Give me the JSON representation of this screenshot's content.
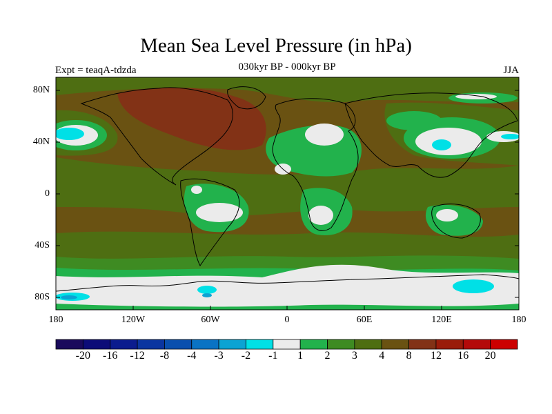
{
  "title": "Mean Sea Level Pressure (in hPa)",
  "experiment_label": "Expt = teaqA-tdzda",
  "period_label": "030kyr BP - 000kyr BP",
  "season_label": "JJA",
  "lon_ticks": [
    "180",
    "120W",
    "60W",
    "0",
    "60E",
    "120E",
    "180"
  ],
  "lat_ticks": [
    "80N",
    "40N",
    "0",
    "40S",
    "80S"
  ],
  "colorbar": {
    "labels": [
      "-20",
      "-16",
      "-12",
      "-8",
      "-4",
      "-3",
      "-2",
      "-1",
      "1",
      "2",
      "3",
      "4",
      "8",
      "12",
      "16",
      "20"
    ],
    "colors": [
      "#1a0a5c",
      "#0c0c78",
      "#0b1c8e",
      "#0b35a0",
      "#0a4fae",
      "#0a73c4",
      "#0ca3d3",
      "#00e0e6",
      "#ebebeb",
      "#22b24c",
      "#3e8b22",
      "#4e6e12",
      "#6a5212",
      "#823216",
      "#9a1c0a",
      "#b40a0a",
      "#cc0000"
    ]
  },
  "palette": {
    "neutral": "#ebebeb",
    "green": "#22b24c",
    "dark_green": "#3e8b22",
    "olive": "#4e6e12",
    "brown": "#6a5212",
    "rust": "#823216",
    "cyan": "#00e0e6",
    "light_blue": "#0ca3d3"
  }
}
